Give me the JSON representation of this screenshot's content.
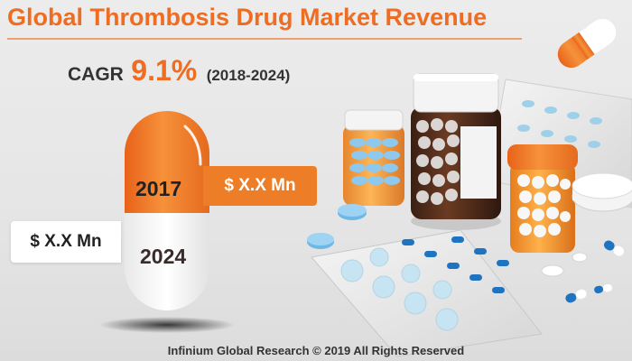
{
  "title": "Global Thrombosis Drug Market Revenue",
  "cagr": {
    "label": "CAGR",
    "value": "9.1%",
    "period": "(2018-2024)"
  },
  "pill": {
    "year_start": "2017",
    "year_end": "2024",
    "value_start": "$ X.X Mn",
    "value_end": "$ X.X Mn"
  },
  "footer": "Infinium Global Research © 2019 All Rights Reserved",
  "colors": {
    "accent": "#ee6d22",
    "pill_orange": "#ee7d28",
    "pill_white": "#ffffff",
    "text_dark": "#333333"
  },
  "icons": [
    "capsule-icon",
    "pill-bottle-icon",
    "blister-pack-icon",
    "tablet-icon"
  ]
}
